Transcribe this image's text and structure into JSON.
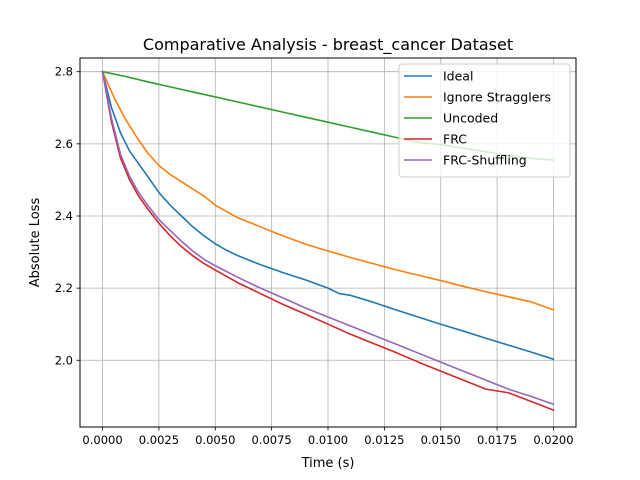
{
  "chart_data": {
    "type": "line",
    "title": "Comparative Analysis - breast_cancer Dataset",
    "xlabel": "Time (s)",
    "ylabel": "Absolute Loss",
    "xlim": [
      -0.001,
      0.021
    ],
    "ylim": [
      1.815,
      2.838
    ],
    "xticks": [
      {
        "value": 0.0,
        "label": "0.0000"
      },
      {
        "value": 0.0025,
        "label": "0.0025"
      },
      {
        "value": 0.005,
        "label": "0.0050"
      },
      {
        "value": 0.0075,
        "label": "0.0075"
      },
      {
        "value": 0.01,
        "label": "0.0100"
      },
      {
        "value": 0.0125,
        "label": "0.0125"
      },
      {
        "value": 0.015,
        "label": "0.0150"
      },
      {
        "value": 0.0175,
        "label": "0.0175"
      },
      {
        "value": 0.02,
        "label": "0.0200"
      }
    ],
    "yticks": [
      {
        "value": 2.0,
        "label": "2.0"
      },
      {
        "value": 2.2,
        "label": "2.2"
      },
      {
        "value": 2.4,
        "label": "2.4"
      },
      {
        "value": 2.6,
        "label": "2.6"
      },
      {
        "value": 2.8,
        "label": "2.8"
      }
    ],
    "grid": true,
    "legend_position": "top-right",
    "series": [
      {
        "name": "Ideal",
        "color": "#1f77b4",
        "x": [
          0.0,
          0.0004,
          0.0008,
          0.0012,
          0.0016,
          0.002,
          0.0025,
          0.003,
          0.0035,
          0.004,
          0.0045,
          0.005,
          0.0055,
          0.006,
          0.007,
          0.008,
          0.009,
          0.01,
          0.0105,
          0.011,
          0.012,
          0.013,
          0.014,
          0.015,
          0.016,
          0.017,
          0.018,
          0.019,
          0.02
        ],
        "y": [
          2.8,
          2.7,
          2.63,
          2.58,
          2.545,
          2.51,
          2.465,
          2.43,
          2.4,
          2.37,
          2.345,
          2.323,
          2.305,
          2.29,
          2.265,
          2.243,
          2.223,
          2.2,
          2.185,
          2.18,
          2.161,
          2.14,
          2.12,
          2.1,
          2.081,
          2.061,
          2.042,
          2.023,
          2.003
        ]
      },
      {
        "name": "Ignore Stragglers",
        "color": "#ff7f0e",
        "x": [
          0.0,
          0.0005,
          0.001,
          0.0015,
          0.002,
          0.0025,
          0.003,
          0.0035,
          0.004,
          0.0045,
          0.005,
          0.006,
          0.007,
          0.008,
          0.009,
          0.01,
          0.011,
          0.012,
          0.013,
          0.014,
          0.015,
          0.016,
          0.017,
          0.018,
          0.019,
          0.02
        ],
        "y": [
          2.8,
          2.73,
          2.67,
          2.62,
          2.575,
          2.54,
          2.515,
          2.495,
          2.475,
          2.455,
          2.43,
          2.395,
          2.37,
          2.345,
          2.322,
          2.303,
          2.285,
          2.268,
          2.251,
          2.236,
          2.221,
          2.205,
          2.19,
          2.176,
          2.162,
          2.14
        ]
      },
      {
        "name": "Uncoded",
        "color": "#2ca02c",
        "x": [
          0.0,
          0.001,
          0.002,
          0.003,
          0.004,
          0.005,
          0.006,
          0.007,
          0.008,
          0.009,
          0.01,
          0.011,
          0.012,
          0.013,
          0.014,
          0.015,
          0.016,
          0.017,
          0.018,
          0.019,
          0.02
        ],
        "y": [
          2.8,
          2.787,
          2.772,
          2.758,
          2.744,
          2.73,
          2.716,
          2.702,
          2.688,
          2.674,
          2.66,
          2.646,
          2.632,
          2.618,
          2.604,
          2.598,
          2.588,
          2.578,
          2.568,
          2.56,
          2.555
        ]
      },
      {
        "name": "FRC",
        "color": "#d62728",
        "x": [
          0.0,
          0.0004,
          0.0008,
          0.0012,
          0.0016,
          0.002,
          0.0025,
          0.003,
          0.0035,
          0.004,
          0.0045,
          0.005,
          0.006,
          0.007,
          0.008,
          0.009,
          0.01,
          0.011,
          0.012,
          0.013,
          0.014,
          0.015,
          0.016,
          0.017,
          0.018,
          0.019,
          0.02
        ],
        "y": [
          2.8,
          2.66,
          2.56,
          2.5,
          2.455,
          2.42,
          2.38,
          2.345,
          2.315,
          2.29,
          2.268,
          2.25,
          2.215,
          2.185,
          2.155,
          2.128,
          2.1,
          2.072,
          2.047,
          2.022,
          1.995,
          1.97,
          1.945,
          1.92,
          1.91,
          1.886,
          1.862
        ]
      },
      {
        "name": "FRC-Shuffling",
        "color": "#9467bd",
        "x": [
          0.0,
          0.0004,
          0.0008,
          0.0012,
          0.0016,
          0.002,
          0.0025,
          0.003,
          0.0035,
          0.004,
          0.0045,
          0.005,
          0.006,
          0.007,
          0.008,
          0.009,
          0.01,
          0.011,
          0.012,
          0.013,
          0.014,
          0.015,
          0.016,
          0.017,
          0.018,
          0.019,
          0.02
        ],
        "y": [
          2.8,
          2.67,
          2.57,
          2.51,
          2.465,
          2.43,
          2.39,
          2.36,
          2.33,
          2.303,
          2.28,
          2.262,
          2.23,
          2.2,
          2.173,
          2.145,
          2.12,
          2.095,
          2.07,
          2.045,
          2.02,
          1.995,
          1.97,
          1.945,
          1.92,
          1.9,
          1.878
        ]
      }
    ]
  }
}
